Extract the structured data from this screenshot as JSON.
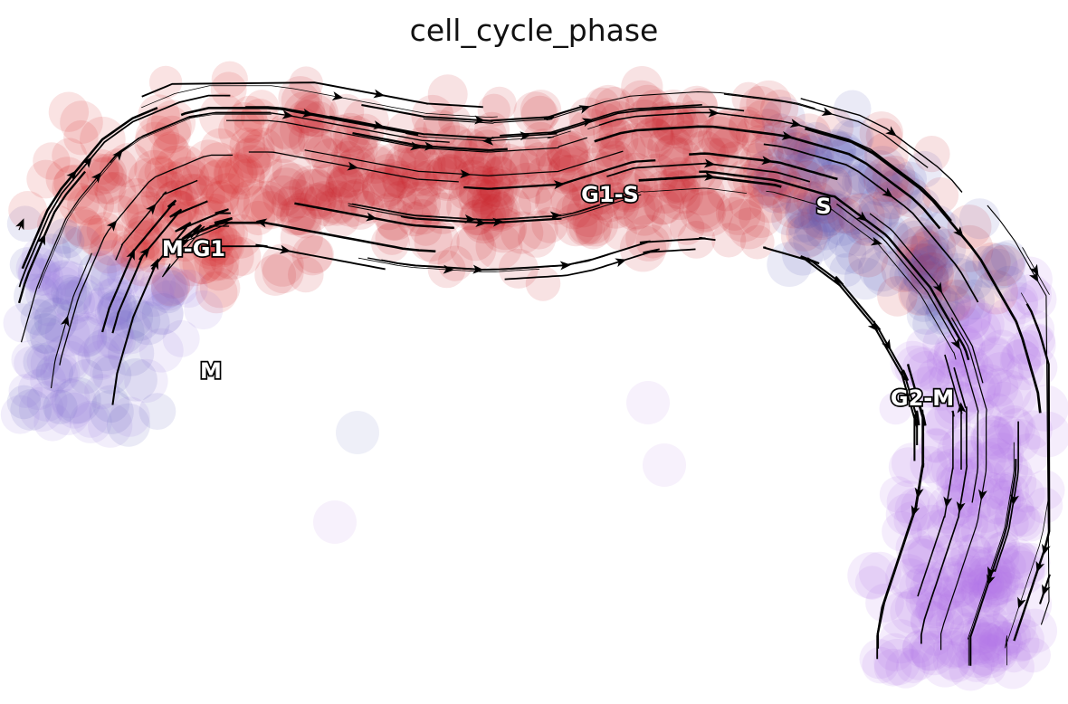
{
  "chart_data": {
    "type": "scatter",
    "title": "cell_cycle_phase",
    "xlabel": "",
    "ylabel": "",
    "grid": false,
    "legend": "on data",
    "overlay": "velocity streamlines",
    "series": [
      {
        "name": "M-G1",
        "color": "#d62728"
      },
      {
        "name": "G1-S",
        "color": "#cc1f24"
      },
      {
        "name": "S",
        "color": "#5a5fb8"
      },
      {
        "name": "G2-M",
        "color": "#b574e6"
      },
      {
        "name": "M",
        "color": "#9e7fe0"
      }
    ]
  }
}
